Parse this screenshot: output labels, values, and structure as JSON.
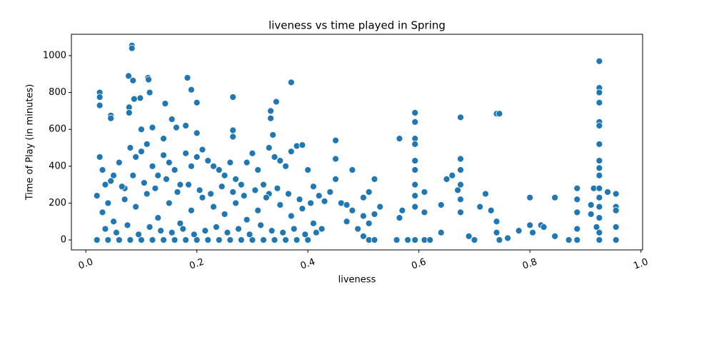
{
  "chart_data": {
    "type": "scatter",
    "title": "liveness vs time played in Spring",
    "x_label": "liveness",
    "y_label": "Time of Play (in minutes)",
    "xlim": [
      -0.026,
      1.003
    ],
    "ylim": [
      -54,
      1116
    ],
    "xticks": [
      {
        "value": 0,
        "label": "0.0"
      },
      0.2,
      0.4,
      0.6,
      0.8,
      {
        "value": 1,
        "label": "1.0"
      }
    ],
    "yticks": [
      0,
      200,
      400,
      600,
      800,
      1000
    ],
    "color": "#1f77b4",
    "x": [
      0.083,
      0.083,
      0.077,
      0.112,
      0.183,
      0.113,
      0.085,
      0.37,
      0.025,
      0.025,
      0.025,
      0.19,
      0.115,
      0.265,
      0.098,
      0.087,
      0.143,
      0.2,
      0.343,
      0.925,
      0.925,
      0.925,
      0.925,
      0.925,
      0.925,
      0.925,
      0.74,
      0.745,
      0.675,
      0.593,
      0.593,
      0.593,
      0.593,
      0.565,
      0.333,
      0.333,
      0.155,
      0.163,
      0.045,
      0.045,
      0.078,
      0.078,
      0.1,
      0.12,
      0.14,
      0.18,
      0.2,
      0.265,
      0.265,
      0.337,
      0.02,
      0.025,
      0.03,
      0.035,
      0.04,
      0.05,
      0.06,
      0.07,
      0.08,
      0.09,
      0.1,
      0.11,
      0.12,
      0.13,
      0.14,
      0.15,
      0.16,
      0.17,
      0.18,
      0.19,
      0.2,
      0.21,
      0.22,
      0.23,
      0.24,
      0.25,
      0.26,
      0.27,
      0.28,
      0.29,
      0.3,
      0.31,
      0.32,
      0.33,
      0.34,
      0.35,
      0.36,
      0.37,
      0.38,
      0.39,
      0.4,
      0.41,
      0.42,
      0.43,
      0.44,
      0.45,
      0.45,
      0.45,
      0.46,
      0.47,
      0.03,
      0.05,
      0.07,
      0.09,
      0.11,
      0.13,
      0.15,
      0.17,
      0.19,
      0.21,
      0.23,
      0.25,
      0.27,
      0.29,
      0.31,
      0.33,
      0.35,
      0.37,
      0.39,
      0.41,
      0.02,
      0.04,
      0.06,
      0.08,
      0.1,
      0.12,
      0.14,
      0.16,
      0.18,
      0.2,
      0.22,
      0.24,
      0.26,
      0.28,
      0.3,
      0.32,
      0.34,
      0.36,
      0.38,
      0.4,
      0.035,
      0.055,
      0.075,
      0.095,
      0.115,
      0.135,
      0.155,
      0.175,
      0.195,
      0.215,
      0.235,
      0.255,
      0.275,
      0.295,
      0.315,
      0.335,
      0.355,
      0.375,
      0.395,
      0.415,
      0.045,
      0.065,
      0.085,
      0.105,
      0.125,
      0.145,
      0.165,
      0.185,
      0.205,
      0.225,
      0.245,
      0.265,
      0.285,
      0.305,
      0.325,
      0.345,
      0.365,
      0.385,
      0.405,
      0.425,
      0.47,
      0.48,
      0.5,
      0.5,
      0.51,
      0.51,
      0.52,
      0.52,
      0.53,
      0.48,
      0.49,
      0.5,
      0.51,
      0.52,
      0.56,
      0.565,
      0.57,
      0.58,
      0.593,
      0.593,
      0.593,
      0.593,
      0.593,
      0.593,
      0.61,
      0.61,
      0.61,
      0.62,
      0.64,
      0.64,
      0.65,
      0.66,
      0.67,
      0.675,
      0.675,
      0.675,
      0.675,
      0.675,
      0.69,
      0.7,
      0.71,
      0.72,
      0.73,
      0.74,
      0.74,
      0.745,
      0.76,
      0.78,
      0.8,
      0.8,
      0.805,
      0.82,
      0.825,
      0.845,
      0.845,
      0.87,
      0.885,
      0.885,
      0.885,
      0.885,
      0.91,
      0.91,
      0.915,
      0.92,
      0.925,
      0.925,
      0.925,
      0.925,
      0.925,
      0.925,
      0.925,
      0.925,
      0.925,
      0.94,
      0.955,
      0.955,
      0.955,
      0.955,
      0.955,
      0.885
    ],
    "values": [
      1055,
      1040,
      890,
      880,
      880,
      870,
      865,
      855,
      800,
      775,
      730,
      815,
      800,
      775,
      770,
      765,
      740,
      745,
      750,
      970,
      825,
      800,
      745,
      640,
      620,
      520,
      685,
      685,
      665,
      690,
      640,
      550,
      520,
      550,
      700,
      660,
      655,
      610,
      675,
      660,
      720,
      690,
      600,
      610,
      550,
      620,
      580,
      595,
      560,
      570,
      240,
      450,
      380,
      300,
      200,
      350,
      420,
      280,
      500,
      450,
      480,
      520,
      400,
      350,
      460,
      420,
      380,
      300,
      470,
      400,
      450,
      490,
      430,
      400,
      380,
      350,
      420,
      330,
      300,
      420,
      470,
      380,
      300,
      500,
      450,
      430,
      400,
      480,
      510,
      515,
      380,
      290,
      240,
      210,
      260,
      540,
      440,
      330,
      200,
      190,
      150,
      100,
      220,
      180,
      250,
      120,
      200,
      90,
      160,
      230,
      180,
      140,
      200,
      110,
      160,
      250,
      190,
      130,
      170,
      90,
      0,
      0,
      0,
      0,
      0,
      0,
      0,
      0,
      0,
      0,
      0,
      0,
      0,
      0,
      0,
      0,
      0,
      0,
      0,
      0,
      60,
      40,
      80,
      30,
      70,
      50,
      40,
      60,
      30,
      50,
      70,
      40,
      60,
      30,
      80,
      50,
      40,
      60,
      30,
      40,
      320,
      290,
      350,
      310,
      280,
      330,
      260,
      300,
      270,
      250,
      290,
      260,
      240,
      270,
      230,
      280,
      250,
      220,
      200,
      60,
      100,
      160,
      230,
      130,
      260,
      90,
      330,
      140,
      180,
      380,
      60,
      20,
      0,
      0,
      0,
      120,
      160,
      0,
      430,
      380,
      300,
      240,
      180,
      0,
      260,
      150,
      0,
      0,
      190,
      40,
      330,
      350,
      270,
      440,
      380,
      300,
      220,
      150,
      20,
      0,
      180,
      250,
      160,
      100,
      40,
      0,
      10,
      50,
      230,
      80,
      40,
      80,
      70,
      230,
      20,
      0,
      280,
      220,
      150,
      60,
      190,
      140,
      280,
      70,
      430,
      390,
      350,
      280,
      230,
      180,
      120,
      40,
      0,
      260,
      250,
      180,
      160,
      70,
      0,
      0
    ]
  }
}
